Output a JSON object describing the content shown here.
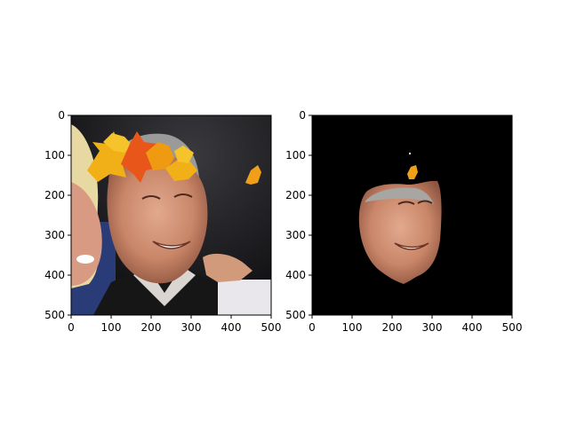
{
  "chart_data": [
    {
      "type": "image",
      "title": "",
      "xlabel": "",
      "ylabel": "",
      "xlim": [
        0,
        500
      ],
      "ylim": [
        500,
        0
      ],
      "xticks": [
        0,
        100,
        200,
        300,
        400,
        500
      ],
      "yticks": [
        0,
        100,
        200,
        300,
        400,
        500
      ],
      "y_inverted": true,
      "grid": false,
      "content": "photo"
    },
    {
      "type": "image",
      "title": "",
      "xlabel": "",
      "ylabel": "",
      "xlim": [
        0,
        500
      ],
      "ylim": [
        500,
        0
      ],
      "xticks": [
        0,
        100,
        200,
        300,
        400,
        500
      ],
      "yticks": [
        0,
        100,
        200,
        300,
        400,
        500
      ],
      "y_inverted": true,
      "grid": false,
      "content": "masked-face-on-black"
    }
  ]
}
